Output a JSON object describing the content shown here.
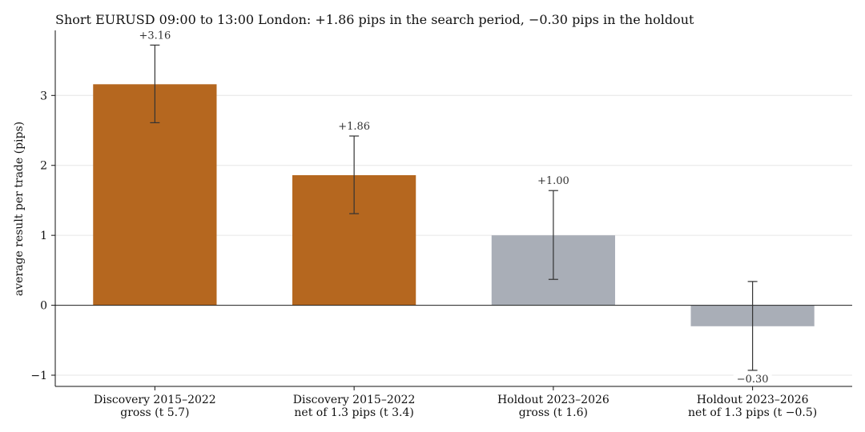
{
  "chart_data": {
    "type": "bar",
    "title": "Short EURUSD 09:00 to 13:00 London: +1.86 pips in the search period, −0.30 pips in the holdout",
    "xlabel": "",
    "ylabel": "average result per trade (pips)",
    "ylim": [
      -1.16,
      3.93
    ],
    "yticks": [
      -1,
      0,
      1,
      2,
      3
    ],
    "ytick_labels": [
      "−1",
      "0",
      "1",
      "2",
      "3"
    ],
    "grid": "horizontal",
    "categories": [
      [
        "Discovery 2015–2022",
        "gross (t 5.7)"
      ],
      [
        "Discovery 2015–2022",
        "net of 1.3 pips (t 3.4)"
      ],
      [
        "Holdout 2023–2026",
        "gross (t 1.6)"
      ],
      [
        "Holdout 2023–2026",
        "net of 1.3 pips (t −0.5)"
      ]
    ],
    "values": [
      3.16,
      1.86,
      1.0,
      -0.3
    ],
    "error_low": [
      2.61,
      1.31,
      0.37,
      -0.93
    ],
    "error_high": [
      3.72,
      2.42,
      1.64,
      0.34
    ],
    "value_labels": [
      "+3.16",
      "+1.86",
      "+1.00",
      "−0.30"
    ],
    "colors": [
      "#b5671f",
      "#b5671f",
      "#a9aeb7",
      "#a9aeb7"
    ]
  }
}
